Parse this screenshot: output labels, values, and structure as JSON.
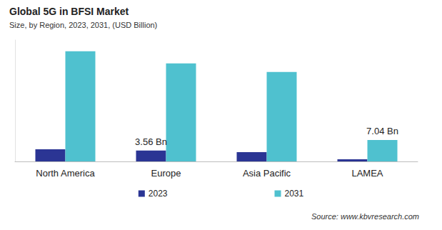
{
  "chart_data": {
    "type": "bar",
    "title": "Global 5G in BFSI Market",
    "subtitle": "Size, by Region, 2023, 2031, (USD Billion)",
    "annotations": [
      "Source: www.kbvresearch.com"
    ],
    "categories": [
      "North America",
      "Europe",
      "Asia Pacific",
      "LAMEA"
    ],
    "series": [
      {
        "name": "2023",
        "color": "#2b3594",
        "values": [
          4.0,
          3.56,
          3.07,
          0.7
        ],
        "value_labels": [
          null,
          "3.56 Bn",
          null,
          null
        ]
      },
      {
        "name": "2031",
        "color": "#4fc1cf",
        "values": [
          36.3,
          32.3,
          29.5,
          7.04
        ],
        "value_labels": [
          null,
          null,
          null,
          "7.04 Bn"
        ]
      }
    ],
    "ylim": [
      0,
      40
    ],
    "grid": false,
    "legend": "bottom",
    "tick_labels": "x",
    "data_labels": true
  }
}
